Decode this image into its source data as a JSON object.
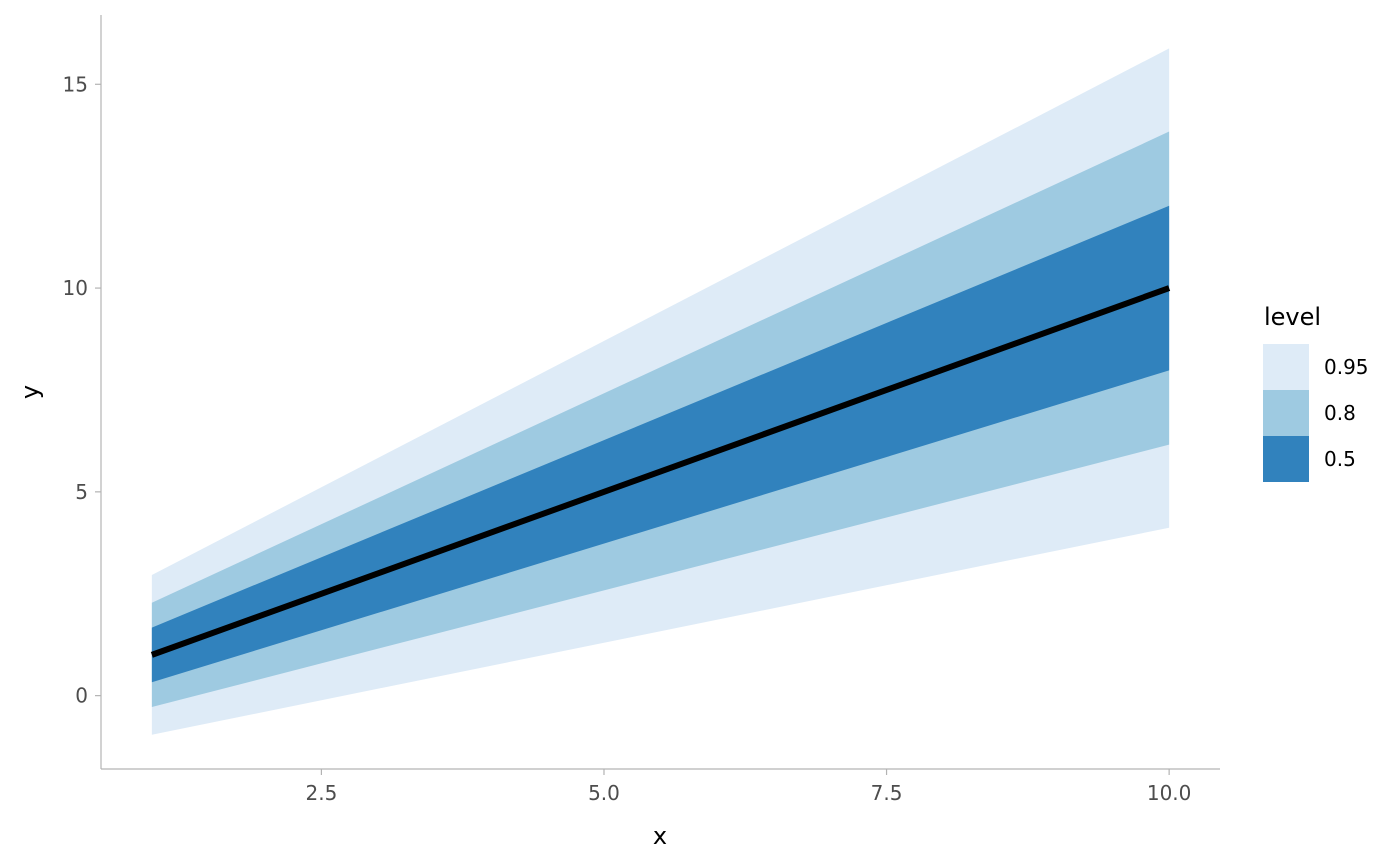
{
  "chart_data": {
    "type": "area",
    "title": "",
    "xlabel": "x",
    "ylabel": "y",
    "xlim": [
      0.55,
      10.45
    ],
    "ylim": [
      -1.8,
      16.7
    ],
    "x_ticks": [
      2.5,
      5.0,
      7.5,
      10.0
    ],
    "x_tick_labels": [
      "2.5",
      "5.0",
      "7.5",
      "10.0"
    ],
    "y_ticks": [
      0,
      5,
      10,
      15
    ],
    "y_tick_labels": [
      "0",
      "5",
      "10",
      "15"
    ],
    "grid": false,
    "legend": {
      "title": "level",
      "position": "right",
      "entries": [
        {
          "label": "0.95",
          "color": "#deebf7"
        },
        {
          "label": "0.8",
          "color": "#9ecae1"
        },
        {
          "label": "0.5",
          "color": "#3182bd"
        }
      ]
    },
    "x": [
      1,
      10
    ],
    "bands": [
      {
        "level": "0.95",
        "color": "#deebf7",
        "lower": [
          -0.96,
          4.12
        ],
        "upper": [
          2.96,
          15.88
        ]
      },
      {
        "level": "0.8",
        "color": "#9ecae1",
        "lower": [
          -0.28,
          6.16
        ],
        "upper": [
          2.28,
          13.84
        ]
      },
      {
        "level": "0.5",
        "color": "#3182bd",
        "lower": [
          0.33,
          7.98
        ],
        "upper": [
          1.67,
          12.02
        ]
      }
    ],
    "line": {
      "color": "#000000",
      "y": [
        1,
        10
      ]
    }
  }
}
